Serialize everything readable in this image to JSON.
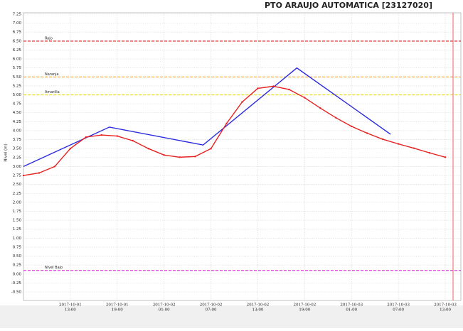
{
  "chart_data": {
    "type": "line",
    "title": "PTO ARAUJO AUTOMATICA [23127020]",
    "y_label": "Nivel (m)",
    "xlim": [
      "2017-10-01 07:00",
      "2017-10-03 15:00"
    ],
    "xticks": [
      {
        "value": "2017-10-01 13:00",
        "label": [
          "2017-10-01",
          "13:00"
        ]
      },
      {
        "value": "2017-10-01 19:00",
        "label": [
          "2017-10-01",
          "19:00"
        ]
      },
      {
        "value": "2017-10-02 01:00",
        "label": [
          "2017-10-02",
          "01:00"
        ]
      },
      {
        "value": "2017-10-02 07:00",
        "label": [
          "2017-10-02",
          "07:00"
        ]
      },
      {
        "value": "2017-10-02 13:00",
        "label": [
          "2017-10-02",
          "13:00"
        ]
      },
      {
        "value": "2017-10-02 19:00",
        "label": [
          "2017-10-02",
          "19:00"
        ]
      },
      {
        "value": "2017-10-03 01:00",
        "label": [
          "2017-10-03",
          "01:00"
        ]
      },
      {
        "value": "2017-10-03 07:00",
        "label": [
          "2017-10-03",
          "07:00"
        ]
      },
      {
        "value": "2017-10-03 13:00",
        "label": [
          "2017-10-03",
          "13:00"
        ]
      }
    ],
    "ylim": [
      -0.5,
      7.25
    ],
    "yticks": [
      {
        "value": -0.5,
        "label": "-0.50"
      },
      -0.25,
      {
        "value": 0,
        "label": "0.00"
      },
      0.25,
      {
        "value": 0.5,
        "label": "0.50"
      },
      0.75,
      {
        "value": 1,
        "label": "1.00"
      },
      1.25,
      {
        "value": 1.5,
        "label": "1.50"
      },
      1.75,
      {
        "value": 2,
        "label": "2.00"
      },
      2.25,
      {
        "value": 2.5,
        "label": "2.50"
      },
      2.75,
      {
        "value": 3,
        "label": "3.00"
      },
      3.25,
      {
        "value": 3.5,
        "label": "3.50"
      },
      3.75,
      {
        "value": 4,
        "label": "4.00"
      },
      4.25,
      {
        "value": 4.5,
        "label": "4.50"
      },
      4.75,
      {
        "value": 5,
        "label": "5.00"
      },
      5.25,
      {
        "value": 5.5,
        "label": "5.50"
      },
      5.75,
      {
        "value": 6,
        "label": "6.00"
      },
      6.25,
      {
        "value": 6.5,
        "label": "6.50"
      },
      6.75,
      {
        "value": 7,
        "label": "7.00"
      },
      7.25
    ],
    "grid": true,
    "thresholds": [
      {
        "label": "Rojo",
        "value": 6.5,
        "color": "#e8262b"
      },
      {
        "label": "Naranja",
        "value": 5.5,
        "color": "#f5a623"
      },
      {
        "label": "Amarilla",
        "value": 5.0,
        "color": "#e8e020"
      },
      {
        "label": "Nivel Bajo",
        "value": 0.1,
        "color": "#e040e0"
      }
    ],
    "vline": {
      "x": "2017-10-03 14:00",
      "color": "#f06060"
    },
    "series": [
      {
        "color": "#2a2ae0",
        "markers": false,
        "x": [
          "2017-10-01 07:00",
          "2017-10-01 18:00",
          "2017-10-02 06:00",
          "2017-10-02 18:00",
          "2017-10-03 06:00"
        ],
        "values": [
          3.0,
          4.1,
          3.6,
          5.75,
          3.9
        ]
      },
      {
        "color": "#e82020",
        "markers": true,
        "x": [
          "2017-10-01 07:00",
          "2017-10-01 09:00",
          "2017-10-01 11:00",
          "2017-10-01 13:00",
          "2017-10-01 15:00",
          "2017-10-01 17:00",
          "2017-10-01 19:00",
          "2017-10-01 21:00",
          "2017-10-01 23:00",
          "2017-10-02 01:00",
          "2017-10-02 03:00",
          "2017-10-02 05:00",
          "2017-10-02 07:00",
          "2017-10-02 09:00",
          "2017-10-02 11:00",
          "2017-10-02 13:00",
          "2017-10-02 15:00",
          "2017-10-02 17:00",
          "2017-10-02 19:00",
          "2017-10-02 21:00",
          "2017-10-02 23:00",
          "2017-10-03 01:00",
          "2017-10-03 03:00",
          "2017-10-03 05:00",
          "2017-10-03 07:00",
          "2017-10-03 09:00",
          "2017-10-03 11:00",
          "2017-10-03 13:00"
        ],
        "values": [
          2.75,
          2.82,
          3.0,
          3.5,
          3.82,
          3.88,
          3.85,
          3.72,
          3.5,
          3.32,
          3.26,
          3.28,
          3.5,
          4.2,
          4.8,
          5.18,
          5.24,
          5.15,
          4.92,
          4.63,
          4.36,
          4.12,
          3.93,
          3.76,
          3.63,
          3.51,
          3.38,
          3.26
        ]
      }
    ]
  }
}
